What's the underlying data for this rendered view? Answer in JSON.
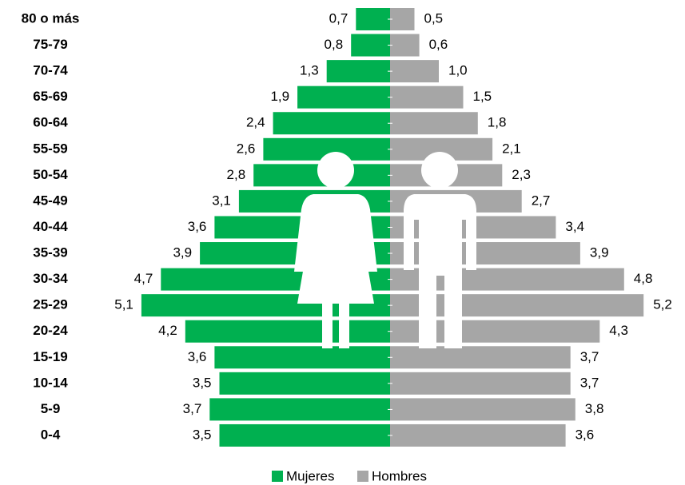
{
  "chart_data": {
    "type": "pyramid",
    "categories": [
      "80 o más",
      "75-79",
      "70-74",
      "65-69",
      "60-64",
      "55-59",
      "50-54",
      "45-49",
      "40-44",
      "35-39",
      "30-34",
      "25-29",
      "20-24",
      "15-19",
      "10-14",
      "5-9",
      "0-4"
    ],
    "series": [
      {
        "name": "Mujeres",
        "color": "#00b050",
        "values": [
          0.7,
          0.8,
          1.3,
          1.9,
          2.4,
          2.6,
          2.8,
          3.1,
          3.6,
          3.9,
          4.7,
          5.1,
          4.2,
          3.6,
          3.5,
          3.7,
          3.5
        ],
        "value_labels": [
          "0,7",
          "0,8",
          "1,3",
          "1,9",
          "2,4",
          "2,6",
          "2,8",
          "3,1",
          "3,6",
          "3,9",
          "4,7",
          "5,1",
          "4,2",
          "3,6",
          "3,5",
          "3,7",
          "3,5"
        ]
      },
      {
        "name": "Hombres",
        "color": "#a6a6a6",
        "values": [
          0.5,
          0.6,
          1.0,
          1.5,
          1.8,
          2.1,
          2.3,
          2.7,
          3.4,
          3.9,
          4.8,
          5.2,
          4.3,
          3.7,
          3.7,
          3.8,
          3.6
        ],
        "value_labels": [
          "0,5",
          "0,6",
          "1,0",
          "1,5",
          "1,8",
          "2,1",
          "2,3",
          "2,7",
          "3,4",
          "3,9",
          "4,8",
          "5,2",
          "4,3",
          "3,7",
          "3,7",
          "3,8",
          "3,6"
        ]
      }
    ],
    "legend": "bottom"
  }
}
